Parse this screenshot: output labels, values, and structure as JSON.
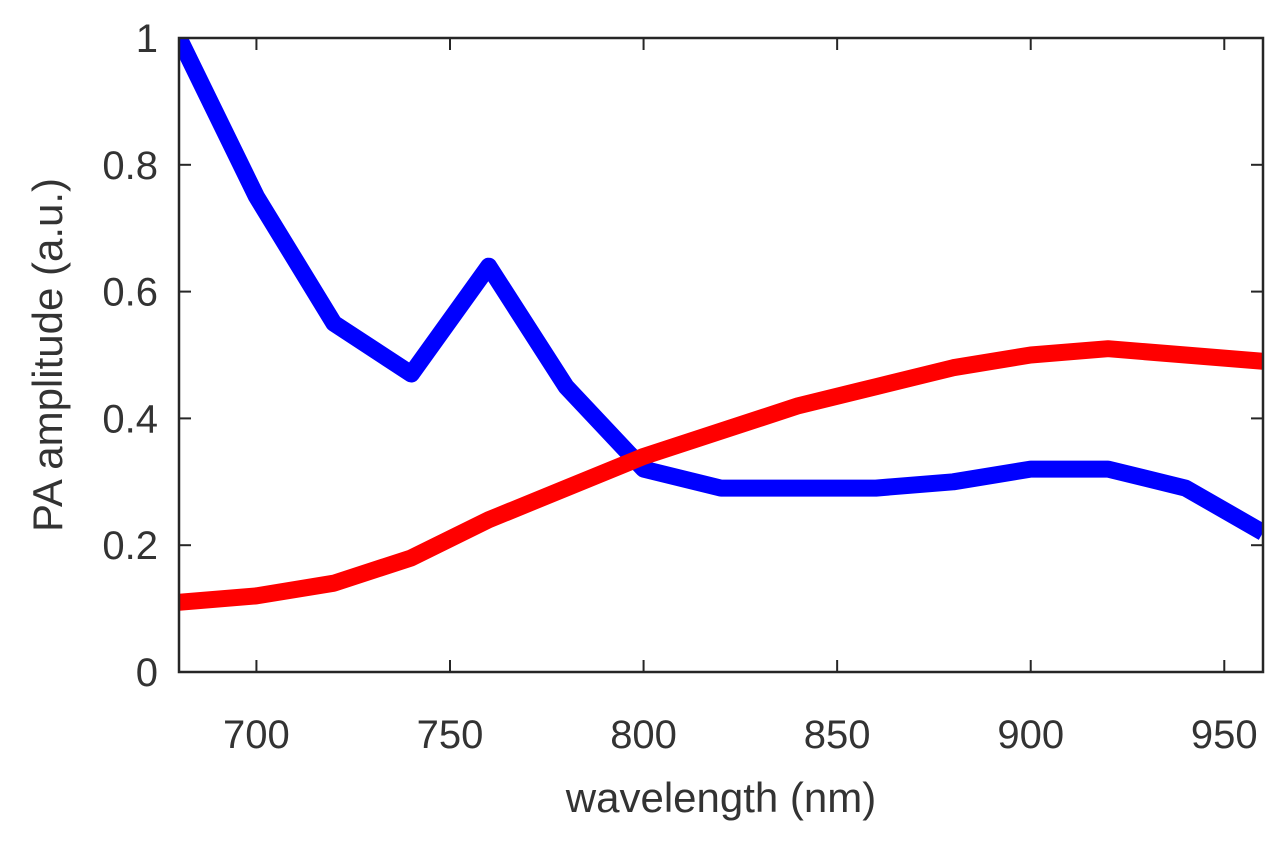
{
  "chart_data": {
    "type": "line",
    "title": "",
    "xlabel": "wavelength (nm)",
    "ylabel": "PA amplitude (a.u.)",
    "xlim": [
      680,
      960
    ],
    "ylim": [
      0,
      1
    ],
    "xticks": [
      700,
      750,
      800,
      850,
      900,
      950
    ],
    "yticks": [
      0,
      0.2,
      0.4,
      0.6,
      0.8,
      1
    ],
    "xtick_labels": [
      "700",
      "750",
      "800",
      "850",
      "900",
      "950"
    ],
    "ytick_labels": [
      "0",
      "0.2",
      "0.4",
      "0.6",
      "0.8",
      "1"
    ],
    "grid": false,
    "legend": null,
    "series": [
      {
        "name": "blue-series",
        "color": "#0000ff",
        "x": [
          680,
          700,
          720,
          740,
          760,
          780,
          800,
          820,
          840,
          860,
          880,
          900,
          920,
          940,
          960
        ],
        "values": [
          1.0,
          0.75,
          0.55,
          0.47,
          0.64,
          0.45,
          0.32,
          0.29,
          0.29,
          0.29,
          0.3,
          0.32,
          0.32,
          0.29,
          0.22
        ]
      },
      {
        "name": "red-series",
        "color": "#ff0000",
        "x": [
          680,
          700,
          720,
          740,
          760,
          780,
          800,
          820,
          840,
          860,
          880,
          900,
          920,
          940,
          960
        ],
        "values": [
          0.11,
          0.12,
          0.14,
          0.18,
          0.24,
          0.29,
          0.34,
          0.38,
          0.42,
          0.45,
          0.48,
          0.5,
          0.51,
          0.5,
          0.49
        ]
      }
    ]
  }
}
